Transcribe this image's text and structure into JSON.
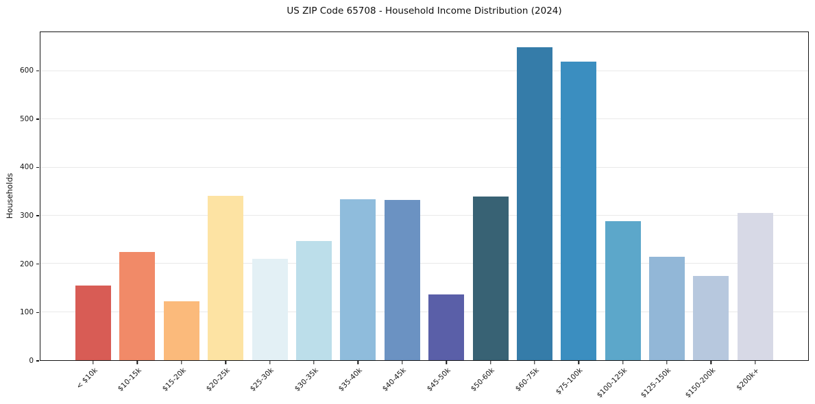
{
  "title": "US ZIP Code 65708 - Household Income Distribution (2024)",
  "chart_data": {
    "type": "bar",
    "title": "US ZIP Code 65708 - Household Income Distribution (2024)",
    "xlabel": "",
    "ylabel": "Households",
    "categories": [
      "< $10k",
      "$10-15k",
      "$15-20k",
      "$20-25k",
      "$25-30k",
      "$30-35k",
      "$35-40k",
      "$40-45k",
      "$45-50k",
      "$50-60k",
      "$60-75k",
      "$75-100k",
      "$100-125k",
      "$125-150k",
      "$150-200k",
      "$200k+"
    ],
    "values": [
      155,
      225,
      122,
      341,
      210,
      247,
      334,
      333,
      137,
      340,
      650,
      620,
      288,
      215,
      175,
      306
    ],
    "bar_colors": [
      "#d85c55",
      "#f18a68",
      "#fbba7b",
      "#fde3a3",
      "#e3f0f5",
      "#bcdeea",
      "#8fbcdc",
      "#6b92c2",
      "#5a5fa8",
      "#386274",
      "#357ca9",
      "#3b8ec0",
      "#5ca7ca",
      "#92b7d7",
      "#b7c8de",
      "#d7d9e6"
    ],
    "yticks": [
      0,
      100,
      200,
      300,
      400,
      500,
      600
    ],
    "ylim": [
      0,
      681
    ],
    "grid": true,
    "legend_position": "none",
    "x_tick_rotation_deg": 45
  },
  "colors": {
    "background": "#ffffff",
    "grid": "#e9e9e9",
    "spine": "#141414",
    "text": "#0e0e0e"
  }
}
